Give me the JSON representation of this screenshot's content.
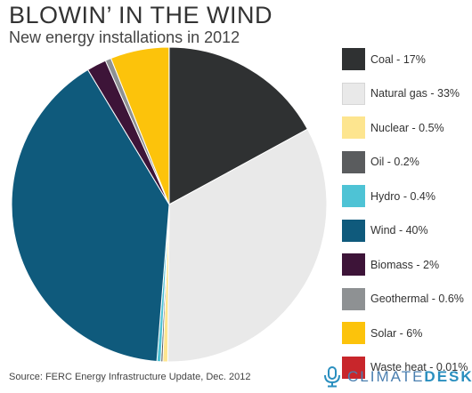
{
  "header": {
    "title": "BLOWIN’ IN THE WIND",
    "subtitle": "New energy installations in 2012"
  },
  "chart_data": {
    "type": "pie",
    "title": "BLOWIN’ IN THE WIND",
    "subtitle": "New energy installations in 2012",
    "legend_position": "right",
    "start_angle_deg": 0,
    "direction": "clockwise",
    "slices": [
      {
        "label": "Coal - 17%",
        "name": "Coal",
        "value": 17,
        "color": "#2f3132"
      },
      {
        "label": "Natural gas - 33%",
        "name": "Natural gas",
        "value": 33,
        "color": "#e9e9e9"
      },
      {
        "label": "Nuclear - 0.5%",
        "name": "Nuclear",
        "value": 0.5,
        "color": "#fde58f"
      },
      {
        "label": "Oil - 0.2%",
        "name": "Oil",
        "value": 0.2,
        "color": "#5a5c5e"
      },
      {
        "label": "Hydro - 0.4%",
        "name": "Hydro",
        "value": 0.4,
        "color": "#4ec3d5"
      },
      {
        "label": "Wind - 40%",
        "name": "Wind",
        "value": 40,
        "color": "#0f5a7c"
      },
      {
        "label": "Biomass - 2%",
        "name": "Biomass",
        "value": 2,
        "color": "#3d1438"
      },
      {
        "label": "Geothermal - 0.6%",
        "name": "Geothermal",
        "value": 0.6,
        "color": "#8e9193"
      },
      {
        "label": "Solar - 6%",
        "name": "Solar",
        "value": 6,
        "color": "#fcc30b"
      },
      {
        "label": "Waste heat - 0.01%",
        "name": "Waste heat",
        "value": 0.01,
        "color": "#c8262b"
      }
    ]
  },
  "footer": {
    "source": "Source: FERC Energy Infrastructure Update, Dec. 2012",
    "brand_part1": "CLIMATE",
    "brand_part2": "DESK",
    "brand_icon": "microphone-icon",
    "brand_color": "#2a8fbf"
  }
}
